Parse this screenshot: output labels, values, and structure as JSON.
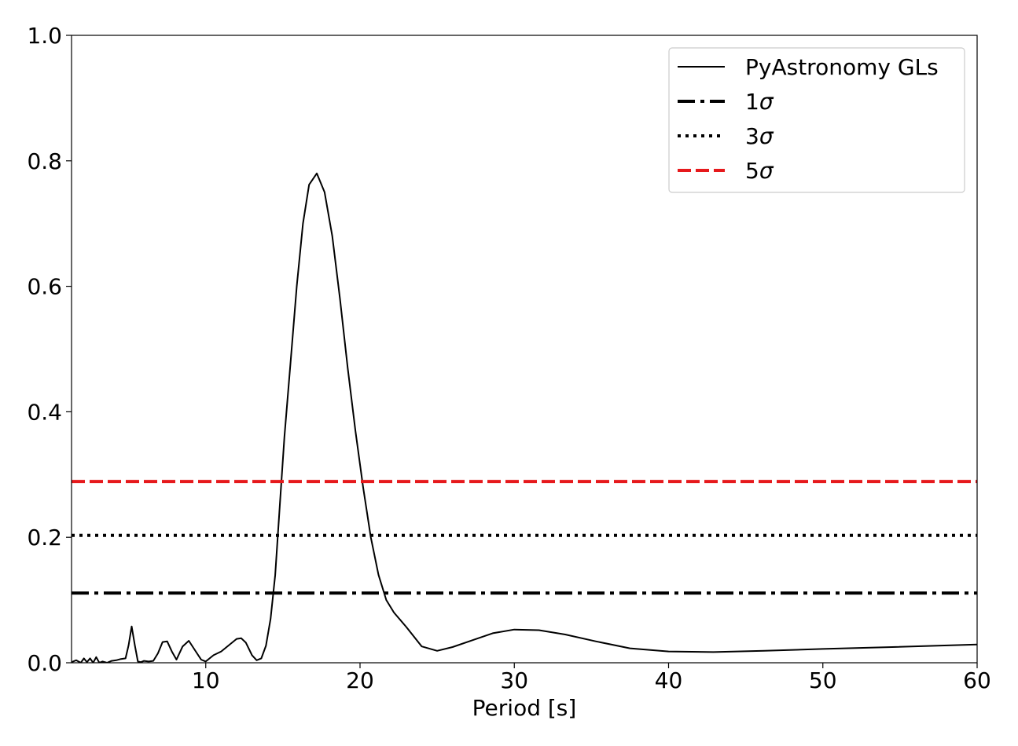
{
  "chart_data": {
    "type": "line",
    "title": "",
    "xlabel": "Period [s]",
    "ylabel": "",
    "xlim": [
      1.3,
      60
    ],
    "ylim": [
      0,
      1.0
    ],
    "x_ticks": [
      10,
      20,
      30,
      40,
      50,
      60
    ],
    "x_tick_labels": [
      "10",
      "20",
      "30",
      "40",
      "50",
      "60"
    ],
    "y_ticks": [
      0.0,
      0.2,
      0.4,
      0.6,
      0.8,
      1.0
    ],
    "y_tick_labels": [
      "0.0",
      "0.2",
      "0.4",
      "0.6",
      "0.8",
      "1.0"
    ],
    "grid": false,
    "legend_position": "top-right",
    "series": [
      {
        "name": "PyAstronomy GLs",
        "color": "#000000",
        "style": "solid",
        "x": [
          1.3,
          1.6,
          1.9,
          2.1,
          2.3,
          2.5,
          2.7,
          2.9,
          3.1,
          3.3,
          3.6,
          3.9,
          4.2,
          4.5,
          4.8,
          5.0,
          5.2,
          5.4,
          5.6,
          5.8,
          6.0,
          6.3,
          6.6,
          6.9,
          7.2,
          7.5,
          7.8,
          8.1,
          8.5,
          8.9,
          9.3,
          9.7,
          10.0,
          10.5,
          11.0,
          11.5,
          12.0,
          12.3,
          12.6,
          13.0,
          13.3,
          13.6,
          13.9,
          14.2,
          14.5,
          14.8,
          15.1,
          15.5,
          15.9,
          16.3,
          16.7,
          17.2,
          17.7,
          18.2,
          18.7,
          19.2,
          19.7,
          20.2,
          20.7,
          21.2,
          21.7,
          22.2,
          23.0,
          24.0,
          25.0,
          26.0,
          27.3,
          28.6,
          30.0,
          31.6,
          33.3,
          35.3,
          37.5,
          40.0,
          42.9,
          46.2,
          50.0,
          54.5,
          60.0
        ],
        "values": [
          0.001,
          0.004,
          0.0,
          0.007,
          0.001,
          0.007,
          0.0,
          0.009,
          0.0,
          0.002,
          0.0,
          0.003,
          0.004,
          0.006,
          0.007,
          0.028,
          0.058,
          0.028,
          0.002,
          0.001,
          0.003,
          0.002,
          0.003,
          0.015,
          0.033,
          0.034,
          0.018,
          0.005,
          0.026,
          0.035,
          0.02,
          0.005,
          0.002,
          0.012,
          0.018,
          0.028,
          0.038,
          0.039,
          0.032,
          0.012,
          0.004,
          0.007,
          0.027,
          0.07,
          0.14,
          0.25,
          0.36,
          0.48,
          0.6,
          0.7,
          0.762,
          0.78,
          0.75,
          0.68,
          0.58,
          0.47,
          0.37,
          0.28,
          0.2,
          0.14,
          0.1,
          0.08,
          0.057,
          0.026,
          0.019,
          0.025,
          0.036,
          0.047,
          0.053,
          0.052,
          0.045,
          0.034,
          0.023,
          0.018,
          0.017,
          0.019,
          0.022,
          0.025,
          0.029
        ]
      },
      {
        "name": "1σ",
        "label_base": "1",
        "label_symbol": "σ",
        "color": "#000000",
        "style": "dashdot",
        "y": 0.111
      },
      {
        "name": "3σ",
        "label_base": "3",
        "label_symbol": "σ",
        "color": "#000000",
        "style": "dotted",
        "y": 0.203
      },
      {
        "name": "5σ",
        "label_base": "5",
        "label_symbol": "σ",
        "color": "#e6191c",
        "style": "dashed",
        "y": 0.289
      }
    ]
  }
}
